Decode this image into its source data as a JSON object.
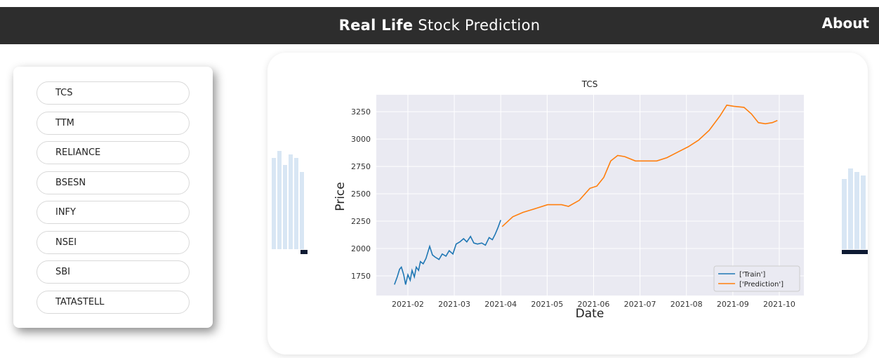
{
  "header": {
    "title_bold": "Real Life",
    "title_rest": "Stock Prediction",
    "nav": "About"
  },
  "sidebar": {
    "stocks": [
      "TCS",
      "TTM",
      "RELIANCE",
      "BSESN",
      "INFY",
      "NSEI",
      "SBI",
      "TATASTELL"
    ]
  },
  "chart_data": {
    "type": "line",
    "title": "TCS",
    "x_label": "Date",
    "y_label": "Price",
    "xlim": [
      1.32,
      10.53
    ],
    "xticks": [
      {
        "value": 2,
        "label": "2021-02"
      },
      {
        "value": 3,
        "label": "2021-03"
      },
      {
        "value": 4,
        "label": "2021-04"
      },
      {
        "value": 5,
        "label": "2021-05"
      },
      {
        "value": 6,
        "label": "2021-06"
      },
      {
        "value": 7,
        "label": "2021-07"
      },
      {
        "value": 8,
        "label": "2021-08"
      },
      {
        "value": 9,
        "label": "2021-09"
      },
      {
        "value": 10,
        "label": "2021-10"
      }
    ],
    "ylim": [
      1570,
      3405
    ],
    "yticks": [
      1750,
      2000,
      2250,
      2500,
      2750,
      3000,
      3250
    ],
    "grid": true,
    "legend": "lower right",
    "background": "#eaeaf2",
    "series": [
      {
        "name": "['Train']",
        "color": "#1f77b4",
        "x": [
          1.71,
          1.77,
          1.82,
          1.86,
          1.91,
          1.95,
          2.0,
          2.05,
          2.09,
          2.14,
          2.18,
          2.23,
          2.27,
          2.33,
          2.39,
          2.47,
          2.53,
          2.59,
          2.67,
          2.74,
          2.82,
          2.89,
          2.97,
          3.04,
          3.12,
          3.2,
          3.27,
          3.35,
          3.42,
          3.5,
          3.59,
          3.67,
          3.75,
          3.82,
          3.88,
          3.94,
          4.0
        ],
        "values": [
          1670,
          1740,
          1810,
          1830,
          1760,
          1670,
          1760,
          1710,
          1800,
          1740,
          1830,
          1800,
          1880,
          1860,
          1910,
          2020,
          1940,
          1920,
          1900,
          1950,
          1930,
          1980,
          1950,
          2040,
          2060,
          2090,
          2060,
          2110,
          2050,
          2040,
          2050,
          2030,
          2100,
          2080,
          2130,
          2190,
          2260
        ]
      },
      {
        "name": "['Prediction']",
        "color": "#ff7f0e",
        "x": [
          4.03,
          4.26,
          4.48,
          4.71,
          5.01,
          5.31,
          5.46,
          5.69,
          5.92,
          6.07,
          6.22,
          6.37,
          6.52,
          6.67,
          6.9,
          7.13,
          7.36,
          7.58,
          7.81,
          8.04,
          8.26,
          8.49,
          8.72,
          8.87,
          9.02,
          9.24,
          9.4,
          9.55,
          9.7,
          9.85,
          9.96
        ],
        "values": [
          2200,
          2290,
          2330,
          2360,
          2400,
          2400,
          2385,
          2440,
          2550,
          2570,
          2650,
          2800,
          2850,
          2840,
          2800,
          2800,
          2800,
          2830,
          2880,
          2930,
          2990,
          3080,
          3210,
          3310,
          3300,
          3290,
          3230,
          3150,
          3140,
          3150,
          3170
        ]
      }
    ]
  }
}
